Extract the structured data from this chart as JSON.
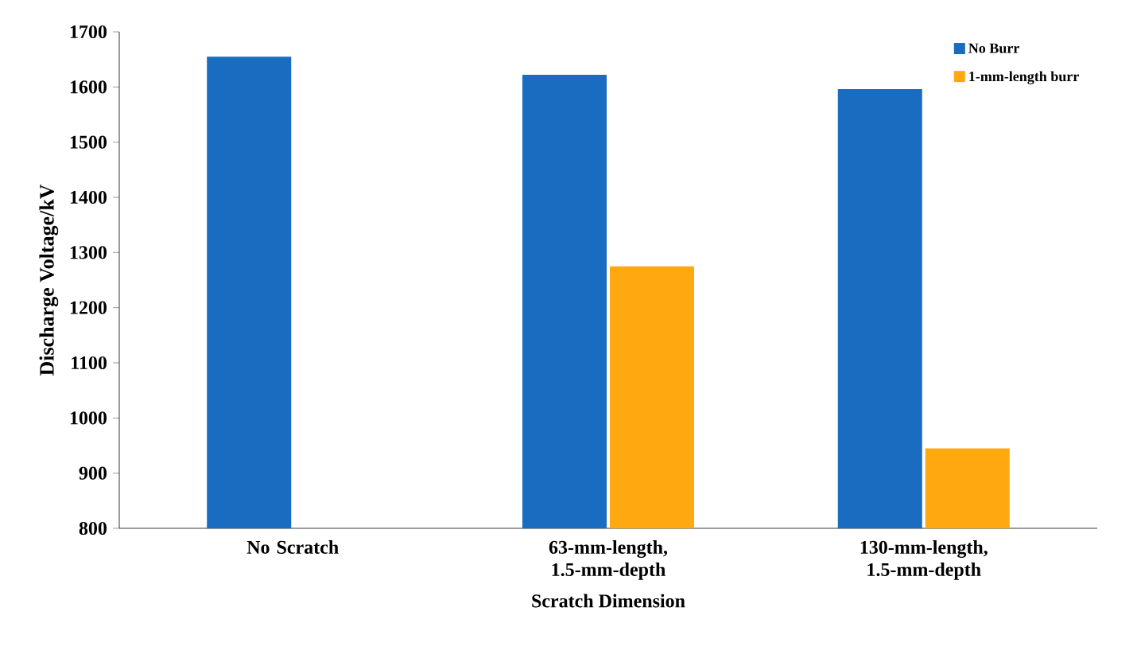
{
  "chart_data": {
    "type": "bar",
    "xlabel": "Scratch Dimension",
    "ylabel": "Discharge Voltage/kV",
    "categories": [
      "No  Scratch",
      "63-mm-length, 1.5-mm-depth",
      "130-mm-length, 1.5-mm-depth"
    ],
    "series": [
      {
        "name": "No Burr",
        "color": "#1a6cc0",
        "values": [
          1655,
          1622,
          1596
        ]
      },
      {
        "name": "1-mm-length burr",
        "color": "#ffa810",
        "values": [
          null,
          1275,
          945
        ]
      }
    ],
    "ylim": [
      800,
      1700
    ],
    "yticks": [
      800,
      900,
      1000,
      1100,
      1200,
      1300,
      1400,
      1500,
      1600,
      1700
    ],
    "legend": "top right",
    "grid": false
  }
}
